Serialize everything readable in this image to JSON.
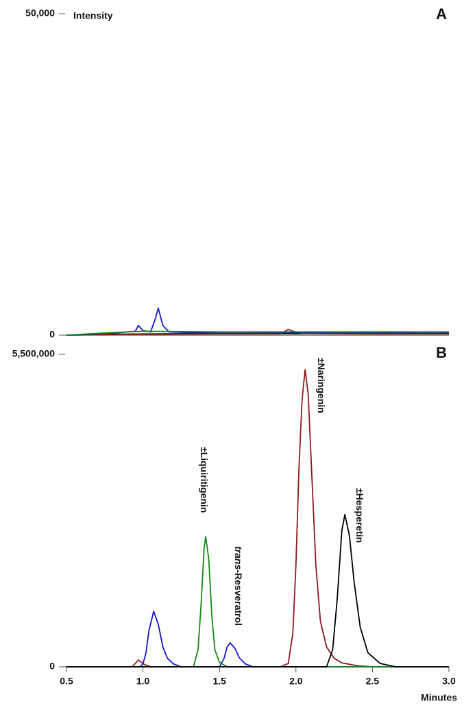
{
  "chart_data": [
    {
      "type": "line",
      "panel_label": "A",
      "y_label": "Intensity",
      "xlim": [
        0.5,
        3.0
      ],
      "ylim": [
        0,
        50000
      ],
      "yticks": [
        0,
        {
          "value": 50000,
          "label": "50,000"
        }
      ],
      "series": [
        {
          "color": "#000000",
          "x": [
            0.5,
            0.8,
            1.5,
            2.0,
            2.5,
            3.0
          ],
          "values": [
            0,
            150,
            250,
            250,
            250,
            250
          ]
        },
        {
          "color": "#8b1a1a",
          "x": [
            0.5,
            0.8,
            1.5,
            1.9,
            1.95,
            1.98,
            2.05,
            2.5,
            3.0
          ],
          "values": [
            0,
            100,
            200,
            200,
            900,
            600,
            250,
            200,
            200
          ]
        },
        {
          "color": "#1414d2",
          "x": [
            0.5,
            0.8,
            0.95,
            0.97,
            1.0,
            1.05,
            1.08,
            1.1,
            1.13,
            1.17,
            1.3,
            1.6,
            2.0,
            2.5,
            2.9,
            3.0
          ],
          "values": [
            0,
            300,
            600,
            1500,
            700,
            500,
            2500,
            4200,
            1500,
            500,
            400,
            450,
            400,
            350,
            450,
            400
          ]
        },
        {
          "color": "#128a12",
          "x": [
            0.5,
            0.8,
            1.0,
            1.5,
            2.0,
            2.5,
            3.0
          ],
          "values": [
            0,
            400,
            600,
            500,
            500,
            500,
            500
          ]
        }
      ]
    },
    {
      "type": "line",
      "panel_label": "B",
      "x_label": "Minutes",
      "xlim": [
        0.5,
        3.0
      ],
      "ylim": [
        0,
        5500000
      ],
      "xticks": [
        0.5,
        {
          "value": 1.0,
          "label": "1.0"
        },
        1.5,
        {
          "value": 2.0,
          "label": "2.0"
        },
        2.5,
        {
          "value": 3.0,
          "label": "3.0"
        }
      ],
      "yticks": [
        0,
        {
          "value": 5500000,
          "label": "5,500,000"
        }
      ],
      "series": [
        {
          "color": "#8b1a1a",
          "x": [
            0.5,
            0.93,
            0.97,
            1.01,
            1.05,
            1.9,
            1.95,
            1.98,
            2.0,
            2.02,
            2.04,
            2.06,
            2.08,
            2.1,
            2.13,
            2.16,
            2.2,
            2.25,
            2.3,
            2.4,
            2.5,
            3.0
          ],
          "values": [
            0,
            0,
            120000,
            40000,
            0,
            0,
            60000,
            600000,
            1800000,
            3500000,
            4700000,
            5230000,
            4800000,
            3600000,
            1800000,
            800000,
            350000,
            150000,
            70000,
            20000,
            0,
            0
          ]
        },
        {
          "color": "#1414d2",
          "x": [
            0.5,
            0.98,
            1.0,
            1.02,
            1.04,
            1.07,
            1.1,
            1.13,
            1.16,
            1.2,
            1.25,
            1.5,
            1.53,
            1.55,
            1.57,
            1.6,
            1.63,
            1.67,
            1.72,
            3.0
          ],
          "values": [
            0,
            0,
            50000,
            250000,
            650000,
            977000,
            750000,
            350000,
            150000,
            50000,
            0,
            0,
            150000,
            350000,
            422000,
            330000,
            160000,
            50000,
            0,
            0
          ]
        },
        {
          "color": "#128a12",
          "x": [
            0.5,
            1.33,
            1.36,
            1.38,
            1.4,
            1.41,
            1.43,
            1.45,
            1.47,
            1.5,
            1.55,
            3.0
          ],
          "values": [
            0,
            0,
            300000,
            1100000,
            2100000,
            2290000,
            1900000,
            900000,
            300000,
            80000,
            0,
            0
          ]
        },
        {
          "color": "#000000",
          "x": [
            0.5,
            2.2,
            2.24,
            2.27,
            2.3,
            2.32,
            2.35,
            2.38,
            2.42,
            2.47,
            2.55,
            2.65,
            3.0
          ],
          "values": [
            0,
            0,
            300000,
            1200000,
            2400000,
            2680000,
            2300000,
            1500000,
            700000,
            250000,
            60000,
            0,
            0
          ]
        }
      ],
      "annotations": [
        {
          "text": "±Liquiritigenin"
        },
        {
          "italic": "trans",
          "text": "-Resveratrol"
        },
        {
          "text": "±Naringenin"
        },
        {
          "text": "±Hesperetin"
        }
      ]
    }
  ]
}
